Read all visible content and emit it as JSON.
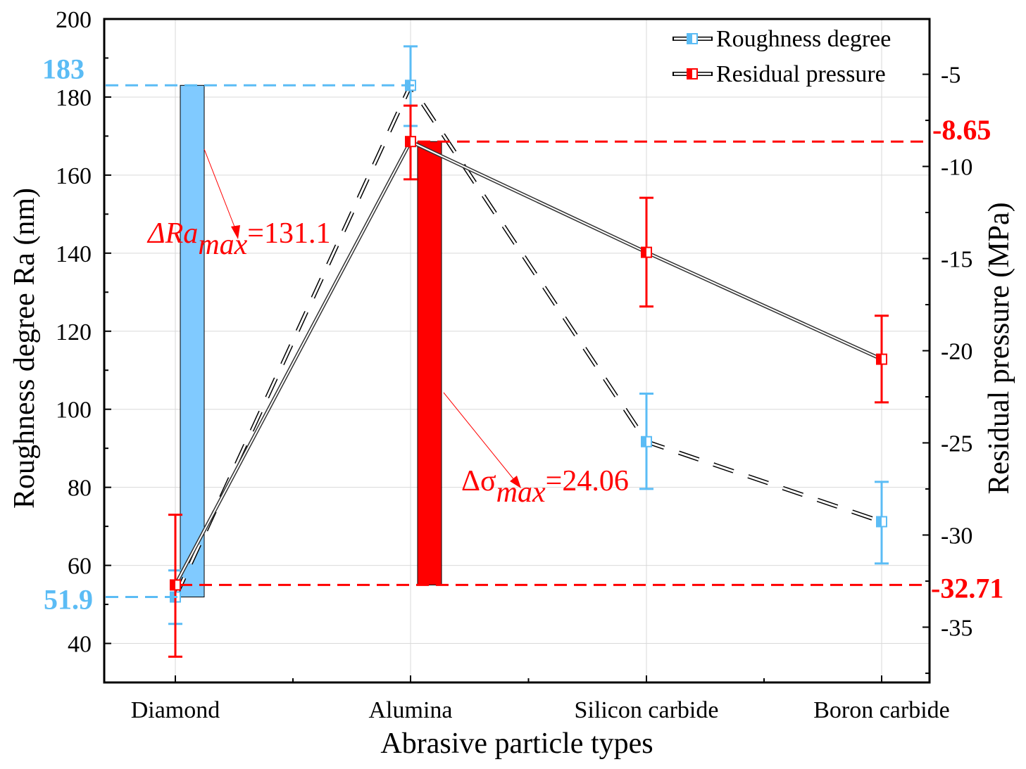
{
  "chart_data": {
    "type": "line",
    "xlabel": "Abrasive particle types",
    "ylabel": "Roughness degree Ra (nm)",
    "y2label": "Residual pressure (MPa)",
    "categories": [
      "Diamond",
      "Alumina",
      "Silicon carbide",
      "Boron carbide"
    ],
    "ylim": [
      30,
      200
    ],
    "y2lim": [
      -38,
      -2
    ],
    "yticks": [
      40,
      60,
      80,
      100,
      120,
      140,
      160,
      180,
      200
    ],
    "y2ticks": [
      -5,
      -10,
      -15,
      -20,
      -25,
      -30,
      -35
    ],
    "grid": true,
    "legend_position": "top-right",
    "series": [
      {
        "name": "Roughness degree",
        "axis": "left",
        "style": "dashed",
        "color": "#5bbcf5",
        "values": [
          51.9,
          183,
          91.7,
          71.2
        ],
        "err_low": [
          45,
          172.6,
          79.6,
          60.5
        ],
        "err_high": [
          58.7,
          193,
          104,
          81.4
        ]
      },
      {
        "name": "Residual pressure",
        "axis": "right",
        "style": "solid",
        "color": "#ff0000",
        "values": [
          -32.71,
          -8.65,
          -14.66,
          -20.46
        ],
        "err_low": [
          -36.6,
          -10.7,
          -17.6,
          -22.8
        ],
        "err_high": [
          -28.9,
          -6.7,
          -11.7,
          -18.1
        ]
      }
    ],
    "range_bars": [
      {
        "axis": "left",
        "category": "Diamond",
        "from": 51.9,
        "to": 183,
        "color": "#80caff"
      },
      {
        "axis": "right",
        "category": "Alumina",
        "from": -32.71,
        "to": -8.65,
        "color": "#ff0000"
      }
    ],
    "reference_labels": {
      "left_max": "183",
      "left_min": "51.9",
      "right_max": "-8.65",
      "right_min": "-32.71"
    },
    "annotations": [
      {
        "prefix": "ΔRa",
        "sub": "max",
        "text": "=131.1"
      },
      {
        "prefix": "Δσ",
        "sub": "max",
        "text": "=24.06"
      }
    ]
  }
}
